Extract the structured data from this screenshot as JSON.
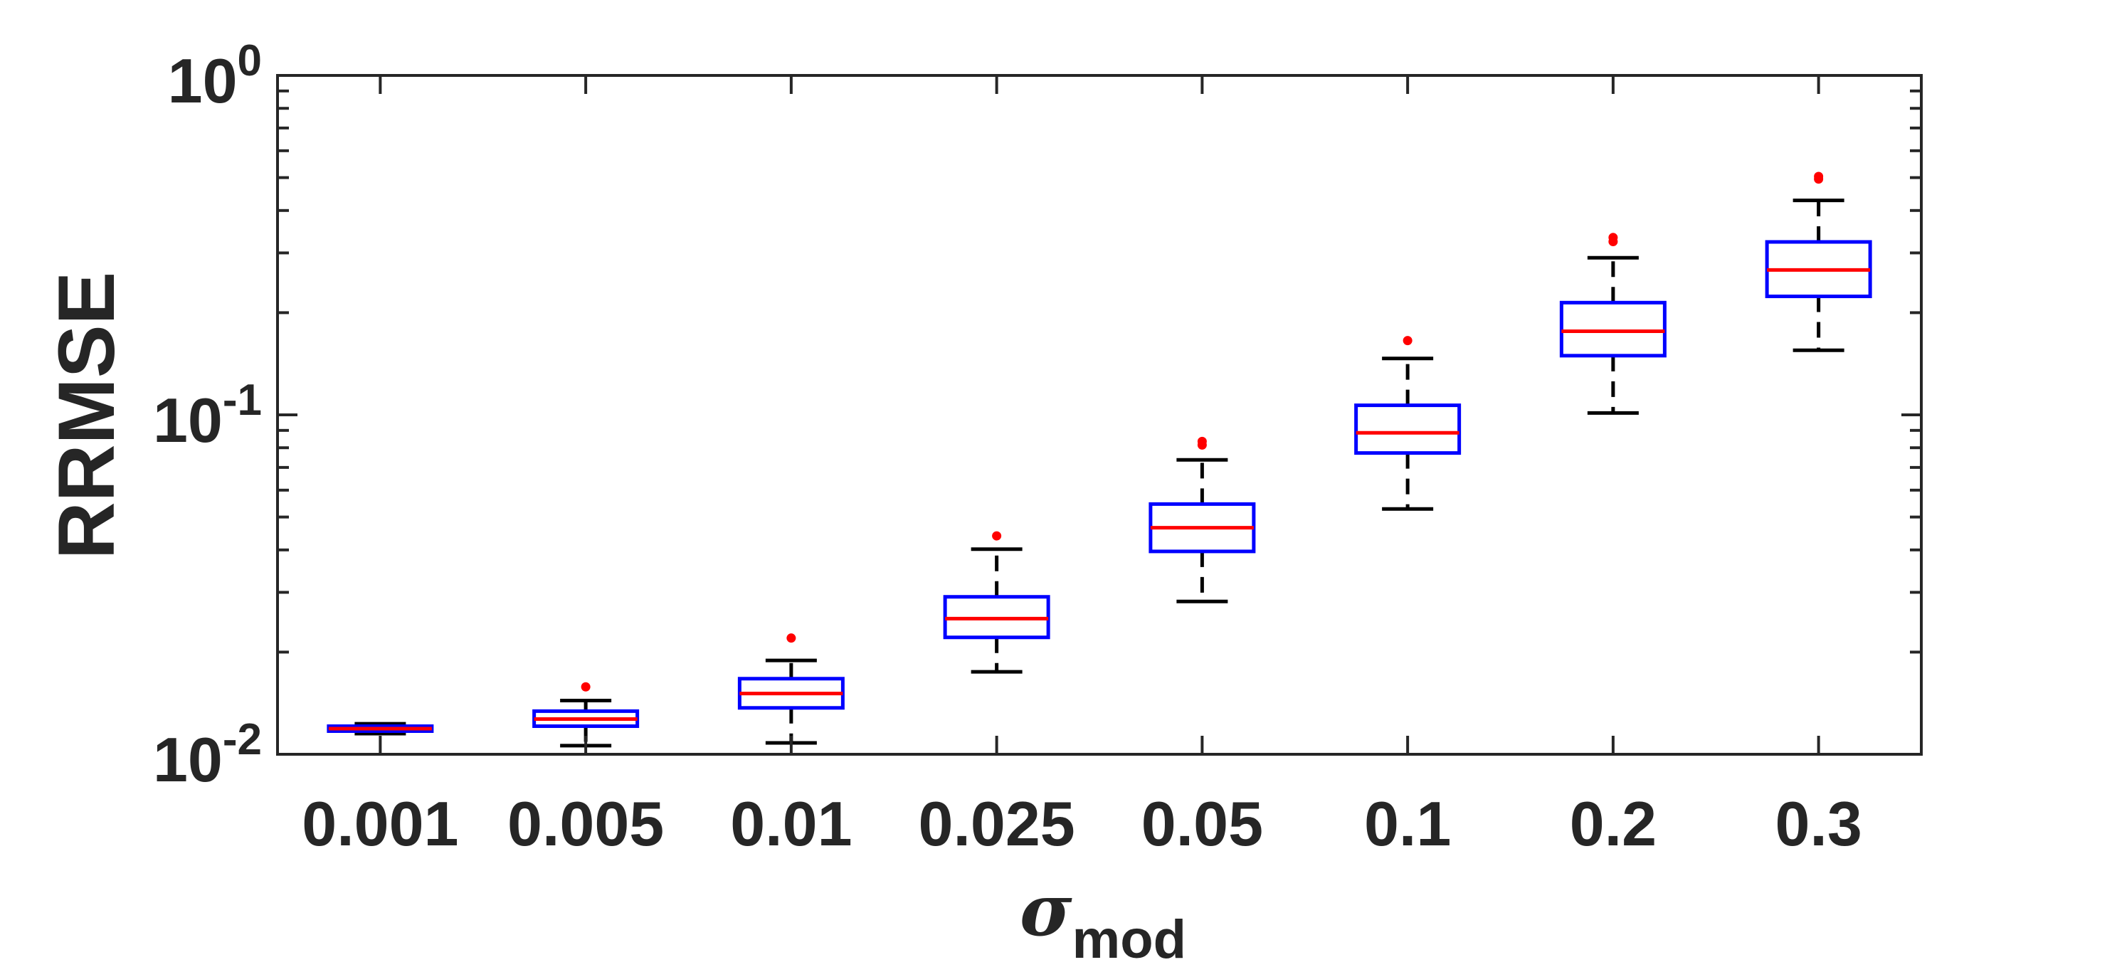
{
  "chart_data": {
    "type": "box",
    "title": "",
    "xlabel": {
      "symbol": "σ",
      "subscript": "mod"
    },
    "ylabel": "RRMSE",
    "yscale": "log",
    "ylim": [
      0.01,
      1
    ],
    "yticks": [
      {
        "value": 0.01,
        "base": "10",
        "exp": "-2"
      },
      {
        "value": 0.1,
        "base": "10",
        "exp": "-1"
      },
      {
        "value": 1,
        "base": "10",
        "exp": "0"
      }
    ],
    "categories": [
      "0.001",
      "0.005",
      "0.01",
      "0.025",
      "0.05",
      "0.1",
      "0.2",
      "0.3"
    ],
    "boxes": [
      {
        "category": "0.001",
        "whisker_low": 0.0115,
        "q1": 0.0117,
        "median": 0.0119,
        "q3": 0.0121,
        "whisker_high": 0.0123,
        "outliers": []
      },
      {
        "category": "0.005",
        "whisker_low": 0.0106,
        "q1": 0.0121,
        "median": 0.0127,
        "q3": 0.0134,
        "whisker_high": 0.0144,
        "outliers": [
          0.0158
        ]
      },
      {
        "category": "0.01",
        "whisker_low": 0.0108,
        "q1": 0.0137,
        "median": 0.0151,
        "q3": 0.0167,
        "whisker_high": 0.0189,
        "outliers": [
          0.022
        ]
      },
      {
        "category": "0.025",
        "whisker_low": 0.0175,
        "q1": 0.0221,
        "median": 0.0251,
        "q3": 0.0291,
        "whisker_high": 0.0402,
        "outliers": [
          0.044
        ]
      },
      {
        "category": "0.05",
        "whisker_low": 0.0282,
        "q1": 0.0396,
        "median": 0.0465,
        "q3": 0.0546,
        "whisker_high": 0.0737,
        "outliers": [
          0.0815,
          0.0835
        ]
      },
      {
        "category": "0.1",
        "whisker_low": 0.0528,
        "q1": 0.0772,
        "median": 0.0885,
        "q3": 0.1067,
        "whisker_high": 0.1466,
        "outliers": [
          0.1655
        ]
      },
      {
        "category": "0.2",
        "whisker_low": 0.1013,
        "q1": 0.1494,
        "median": 0.1763,
        "q3": 0.2141,
        "whisker_high": 0.2902,
        "outliers": [
          0.324,
          0.333
        ]
      },
      {
        "category": "0.3",
        "whisker_low": 0.155,
        "q1": 0.2234,
        "median": 0.2672,
        "q3": 0.3232,
        "whisker_high": 0.4284,
        "outliers": [
          0.495,
          0.504
        ]
      }
    ],
    "colors": {
      "box": "#0000ff",
      "median": "#ff0000",
      "whisker": "#000000",
      "outlier": "#ff0000",
      "axis": "#262626",
      "text": "#262626",
      "background": "#ffffff"
    },
    "grid": false
  }
}
